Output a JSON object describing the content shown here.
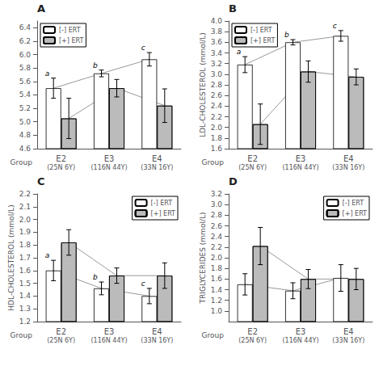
{
  "chart_data": [
    {
      "type": "bar",
      "title": "A",
      "xlabel": "Group",
      "categories": [
        "E2\n(25N 6Y)",
        "E3\n(116N 44Y)",
        "E4\n(33N 16Y)"
      ],
      "series": [
        {
          "name": "[-] ERT",
          "color": "white",
          "values": [
            5.5,
            5.72,
            5.93
          ],
          "errors": [
            0.15,
            0.05,
            0.1
          ]
        },
        {
          "name": "[+] ERT",
          "color": "#bbbbbb",
          "values": [
            5.05,
            5.5,
            5.24
          ],
          "errors": [
            0.3,
            0.13,
            0.25
          ]
        }
      ],
      "annotations": [
        {
          "text": "a",
          "x": "E2\n(25N 6Y)",
          "y": 5.67
        },
        {
          "text": "b",
          "x": "E3\n(116N 44Y)",
          "y": 5.78
        },
        {
          "text": "c",
          "x": "E4\n(33N 16Y)",
          "y": 6.05
        }
      ],
      "ylim": [
        4.6,
        6.5
      ],
      "yticks": [
        4.6,
        4.8,
        {
          "value": 5.0,
          "label": "5.0"
        },
        5.2,
        5.4,
        5.6,
        5.8,
        {
          "value": 6.0,
          "label": "6.0"
        },
        6.2,
        6.4
      ],
      "grid": false,
      "legend": "upper left"
    },
    {
      "type": "bar",
      "title": "B",
      "xlabel": "Group",
      "ylabel": "LDL-CHOLESTEROL (mmol/L)",
      "categories": [
        "E2\n(25N 6Y)",
        "E3\n(116N 44Y)",
        "E4\n(33N 16Y)"
      ],
      "series": [
        {
          "name": "[-] ERT",
          "color": "white",
          "values": [
            3.18,
            3.6,
            3.72
          ],
          "errors": [
            0.15,
            0.05,
            0.1
          ]
        },
        {
          "name": "[+] ERT",
          "color": "#bbbbbb",
          "values": [
            2.06,
            3.05,
            2.95
          ],
          "errors": [
            0.38,
            0.2,
            0.15
          ]
        }
      ],
      "annotations": [
        {
          "text": "a",
          "x": "E2\n(25N 6Y)",
          "y": 3.35
        },
        {
          "text": "b",
          "x": "E3\n(116N 44Y)",
          "y": 3.67
        },
        {
          "text": "c",
          "x": "E4\n(33N 16Y)",
          "y": 3.84
        }
      ],
      "ylim": [
        1.6,
        4.0
      ],
      "yticks": [
        1.6,
        1.8,
        {
          "value": 2.0,
          "label": "2.0"
        },
        2.2,
        2.4,
        2.6,
        2.8,
        {
          "value": 3.0,
          "label": "3.0"
        },
        3.2,
        3.4,
        3.6,
        3.8,
        {
          "value": 4.0,
          "label": "4.0"
        }
      ],
      "grid": false,
      "legend": "upper left"
    },
    {
      "type": "bar",
      "title": "C",
      "xlabel": "Group",
      "ylabel": "HDL-CHOLESTEROL (mmol/L)",
      "categories": [
        "E2\n(25N 6Y)",
        "E3\n(116N 44Y)",
        "E4\n(33N 16Y)"
      ],
      "series": [
        {
          "name": "[-] ERT",
          "color": "white",
          "values": [
            1.6,
            1.46,
            1.4
          ],
          "errors": [
            0.08,
            0.05,
            0.06
          ]
        },
        {
          "name": "[+] ERT",
          "color": "#bbbbbb",
          "values": [
            1.82,
            1.56,
            1.56
          ],
          "errors": [
            0.1,
            0.06,
            0.1
          ]
        }
      ],
      "annotations": [
        {
          "text": "a",
          "x": "E2\n(25N 6Y)",
          "y": 1.69
        },
        {
          "text": "b",
          "x": "E3\n(116N 44Y)",
          "y": 1.52
        },
        {
          "text": "c",
          "x": "E4\n(33N 16Y)",
          "y": 1.47
        }
      ],
      "ylim": [
        1.2,
        2.2
      ],
      "yticks": [
        1.2,
        1.3,
        1.4,
        1.5,
        1.6,
        1.7,
        1.8,
        1.9,
        {
          "value": 2.0,
          "label": "2.0"
        },
        2.1,
        2.2
      ],
      "grid": false,
      "legend": "upper right"
    },
    {
      "type": "bar",
      "title": "D",
      "xlabel": "Group",
      "ylabel": "TRIGLYCERIDES (mmol/L)",
      "categories": [
        "E2\n(25N 6Y)",
        "E3\n(116N 44Y)",
        "E4\n(33N 16Y)"
      ],
      "series": [
        {
          "name": "[-] ERT",
          "color": "white",
          "values": [
            1.5,
            1.38,
            1.62
          ],
          "errors": [
            0.2,
            0.15,
            0.25
          ]
        },
        {
          "name": "[+] ERT",
          "color": "#bbbbbb",
          "values": [
            2.22,
            1.6,
            1.6
          ],
          "errors": [
            0.35,
            0.18,
            0.2
          ]
        }
      ],
      "ylim": [
        0.8,
        3.2
      ],
      "yticks": [
        {
          "value": 1.0,
          "label": "1.0"
        },
        1.2,
        1.4,
        1.6,
        1.8,
        {
          "value": 2.0,
          "label": "2.0"
        },
        2.2,
        2.4,
        2.6,
        2.8,
        {
          "value": 3.0,
          "label": "3.0"
        },
        3.2
      ],
      "grid": false,
      "legend": "upper right"
    }
  ]
}
